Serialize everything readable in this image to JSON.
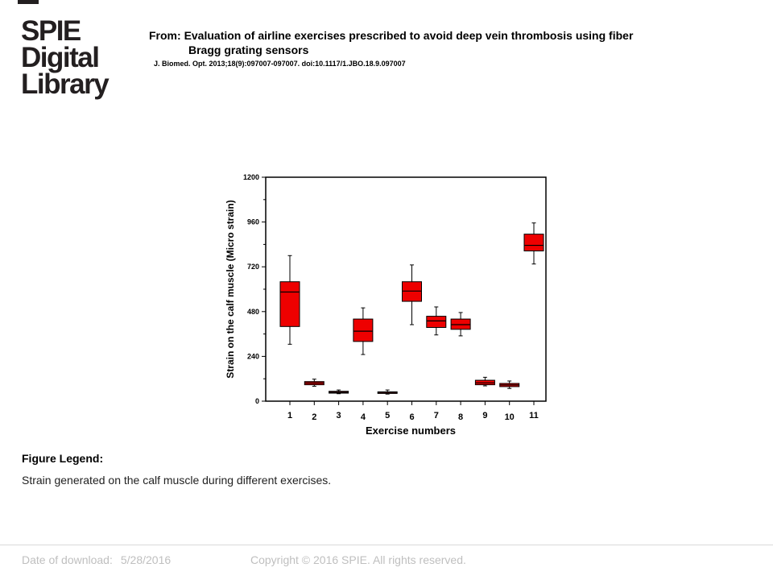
{
  "logo": {
    "lines": [
      "SPIE",
      "Digital",
      "Library"
    ]
  },
  "header": {
    "from_prefix": "From: ",
    "title_line1": "Evaluation of airline exercises prescribed to avoid deep vein thrombosis using fiber",
    "title_line2": "Bragg grating sensors",
    "citation": "J. Biomed. Opt. 2013;18(9):097007-097007. doi:10.1117/1.JBO.18.9.097007"
  },
  "chart_data": {
    "type": "box",
    "xlabel": "Exercise numbers",
    "ylabel": "Strain on the calf muscle (Micro strain)",
    "ylim": [
      0,
      1200
    ],
    "yticks": [
      0,
      240,
      480,
      720,
      960,
      1200
    ],
    "grid": false,
    "box_color": "#ee0000",
    "categories": [
      "1",
      "2",
      "3",
      "4",
      "5",
      "6",
      "7",
      "8",
      "9",
      "10",
      "11"
    ],
    "boxes": [
      {
        "min": 305,
        "q1": 400,
        "median": 585,
        "q3": 640,
        "max": 780
      },
      {
        "min": 80,
        "q1": 88,
        "median": 97,
        "q3": 105,
        "max": 118
      },
      {
        "min": 40,
        "q1": 43,
        "median": 48,
        "q3": 53,
        "max": 60
      },
      {
        "min": 250,
        "q1": 320,
        "median": 375,
        "q3": 440,
        "max": 500
      },
      {
        "min": 38,
        "q1": 43,
        "median": 47,
        "q3": 50,
        "max": 60
      },
      {
        "min": 410,
        "q1": 535,
        "median": 590,
        "q3": 640,
        "max": 730
      },
      {
        "min": 355,
        "q1": 395,
        "median": 430,
        "q3": 455,
        "max": 505
      },
      {
        "min": 350,
        "q1": 385,
        "median": 410,
        "q3": 440,
        "max": 475
      },
      {
        "min": 82,
        "q1": 88,
        "median": 98,
        "q3": 112,
        "max": 128
      },
      {
        "min": 68,
        "q1": 78,
        "median": 87,
        "q3": 95,
        "max": 108
      },
      {
        "min": 735,
        "q1": 805,
        "median": 835,
        "q3": 895,
        "max": 955
      }
    ]
  },
  "legend": {
    "heading": "Figure Legend:",
    "text": "Strain generated on the calf muscle during different exercises."
  },
  "footer": {
    "date_label": "Date of download:",
    "date_value": "5/28/2016",
    "copyright": "Copyright © 2016 SPIE. All rights reserved."
  }
}
